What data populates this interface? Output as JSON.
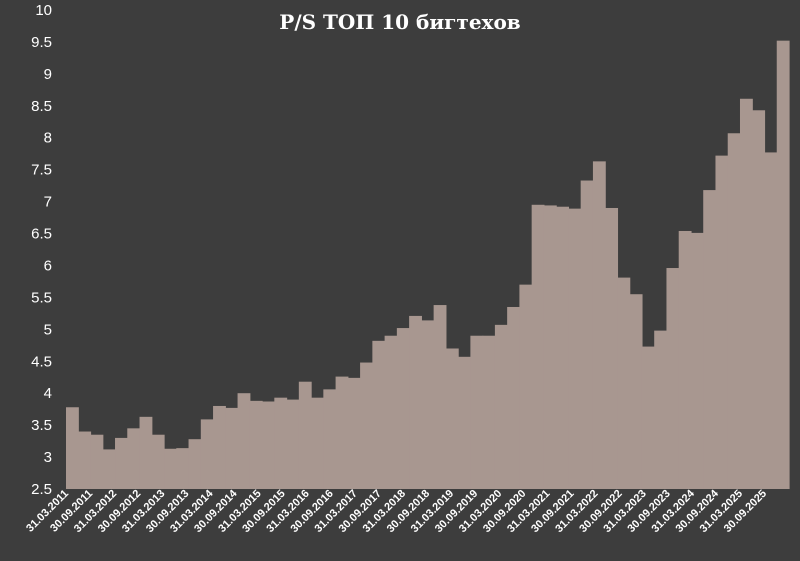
{
  "chart_data": {
    "type": "area",
    "title": "P/S ТОП 10 бигтехов",
    "xlabel": "",
    "ylabel": "",
    "ylim": [
      2.5,
      10
    ],
    "y_ticks": [
      "2.5",
      "3",
      "3.5",
      "4",
      "4.5",
      "5",
      "5.5",
      "6",
      "6.5",
      "7",
      "7.5",
      "8",
      "8.5",
      "9",
      "9.5",
      "10"
    ],
    "x_tick_labels": [
      "31.03.2011",
      "30.09.2011",
      "31.03.2012",
      "30.09.2012",
      "31.03.2013",
      "30.09.2013",
      "31.03.2014",
      "30.09.2014",
      "31.03.2015",
      "30.09.2015",
      "31.03.2016",
      "30.09.2016",
      "31.03.2017",
      "30.09.2017",
      "31.03.2018",
      "30.09.2018",
      "31.03.2019",
      "30.09.2019",
      "31.03.2020",
      "30.09.2020",
      "31.03.2021",
      "30.09.2021",
      "31.03.2022",
      "30.09.2022",
      "31.03.2023",
      "30.09.2023",
      "31.03.2024",
      "30.09.2024",
      "31.03.2025",
      "30.09.2025"
    ],
    "values": [
      3.78,
      3.4,
      3.35,
      3.12,
      3.3,
      3.45,
      3.63,
      3.35,
      3.13,
      3.14,
      3.28,
      3.59,
      3.8,
      3.77,
      4.0,
      3.88,
      3.87,
      3.93,
      3.9,
      4.18,
      3.93,
      4.06,
      4.26,
      4.24,
      4.48,
      4.82,
      4.9,
      5.02,
      5.21,
      5.14,
      5.38,
      4.7,
      4.57,
      4.9,
      4.9,
      5.07,
      5.35,
      5.7,
      6.95,
      6.94,
      6.92,
      6.89,
      7.33,
      7.63,
      6.9,
      5.81,
      5.55,
      4.73,
      4.98,
      5.96,
      6.54,
      6.51,
      7.18,
      7.72,
      8.07,
      8.61,
      8.43,
      7.77,
      9.52
    ],
    "grid": false,
    "legend": "none",
    "colors": {
      "background": "#3d3d3d",
      "fill": "#a89790",
      "text": "#ffffff"
    }
  }
}
